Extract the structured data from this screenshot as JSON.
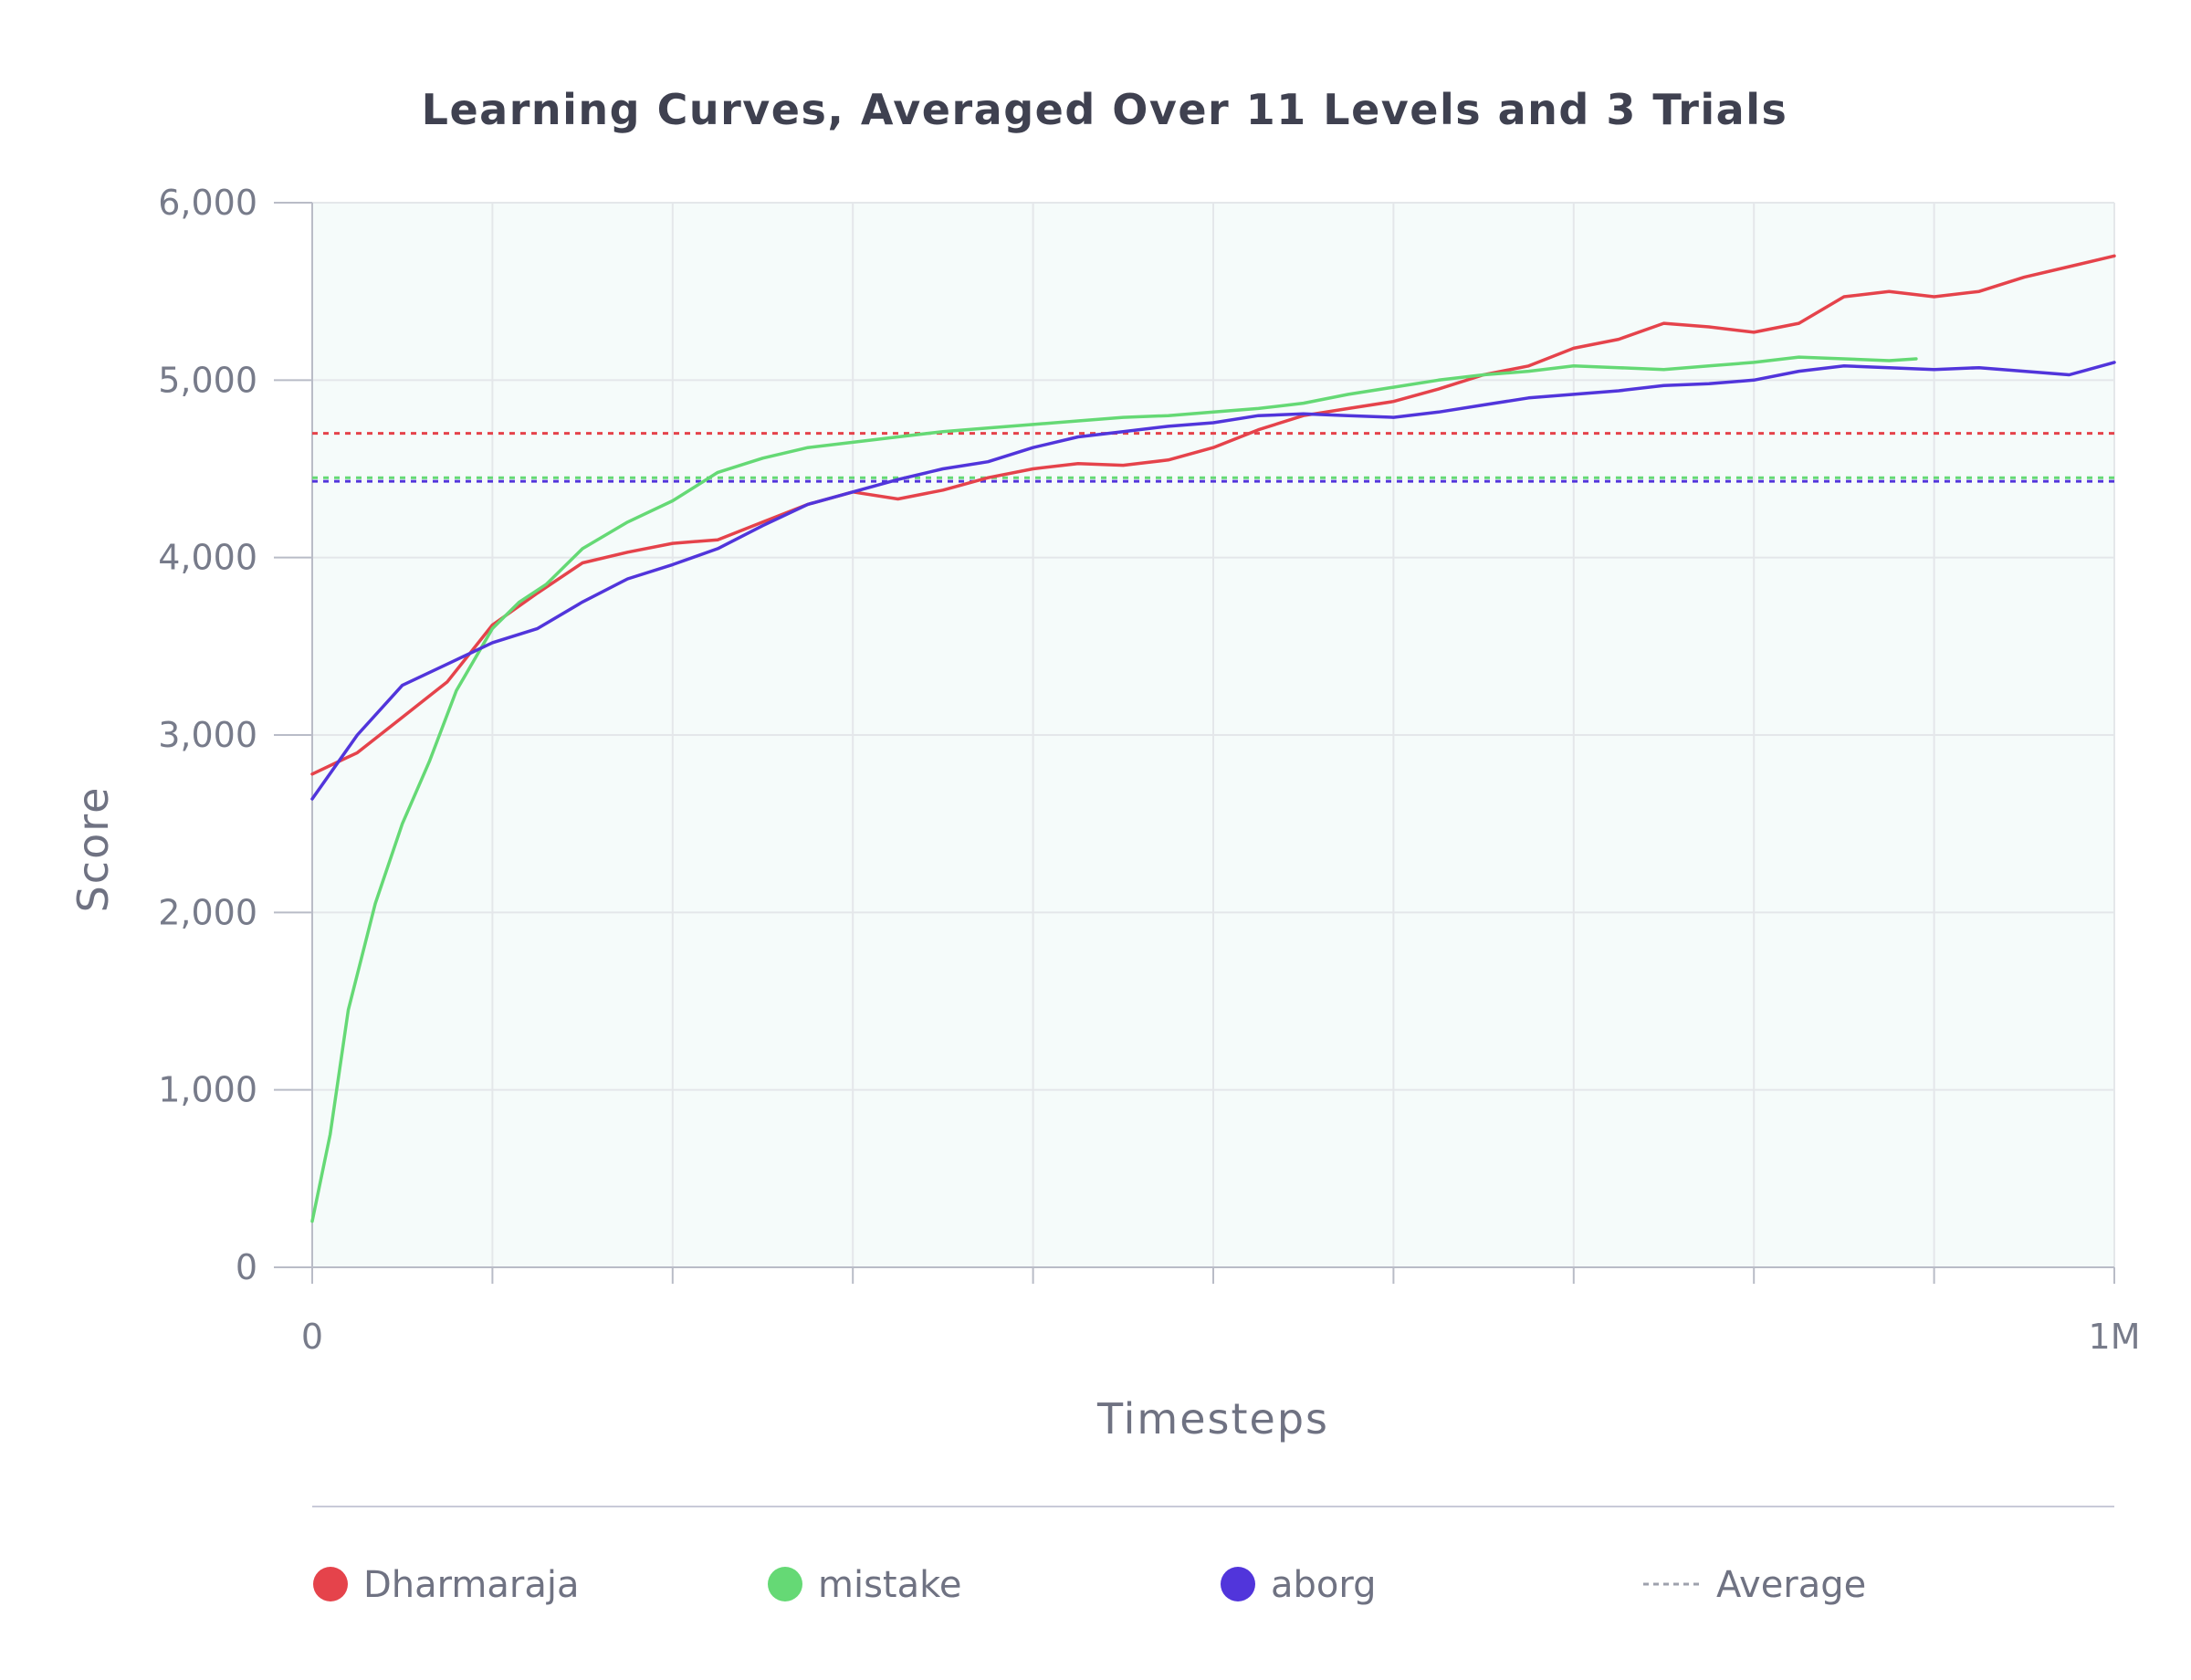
{
  "chart_data": {
    "type": "line",
    "title": "Learning Curves, Averaged Over 11 Levels and 3 Trials",
    "xlabel": "Timesteps",
    "ylabel": "Score",
    "xlim": [
      0,
      1000000
    ],
    "ylim": [
      0,
      6000
    ],
    "grid": true,
    "x_ticks": [
      {
        "value": 0,
        "label": "0"
      },
      {
        "value": 1000000,
        "label": "1M"
      }
    ],
    "y_ticks": [
      {
        "value": 0,
        "label": "0"
      },
      {
        "value": 1000,
        "label": "1,000"
      },
      {
        "value": 2000,
        "label": "2,000"
      },
      {
        "value": 3000,
        "label": "3,000"
      },
      {
        "value": 4000,
        "label": "4,000"
      },
      {
        "value": 5000,
        "label": "5,000"
      },
      {
        "value": 6000,
        "label": "6,000"
      }
    ],
    "legend_position": "bottom",
    "series": [
      {
        "name": "Dharmaraja",
        "color": "#e5434b",
        "average": 4700,
        "x": [
          0,
          25000,
          50000,
          75000,
          100000,
          125000,
          150000,
          175000,
          200000,
          225000,
          250000,
          275000,
          300000,
          325000,
          350000,
          375000,
          400000,
          425000,
          450000,
          475000,
          500000,
          525000,
          550000,
          575000,
          600000,
          625000,
          650000,
          675000,
          700000,
          725000,
          750000,
          775000,
          800000,
          825000,
          850000,
          875000,
          900000,
          925000,
          950000,
          975000,
          1000000
        ],
        "values": [
          2780,
          2900,
          3100,
          3300,
          3620,
          3800,
          3970,
          4030,
          4080,
          4100,
          4200,
          4300,
          4370,
          4330,
          4380,
          4450,
          4500,
          4530,
          4520,
          4550,
          4620,
          4720,
          4800,
          4840,
          4880,
          4950,
          5030,
          5080,
          5180,
          5230,
          5320,
          5300,
          5270,
          5320,
          5470,
          5500,
          5470,
          5500,
          5580,
          5640,
          5700
        ]
      },
      {
        "name": "mistake",
        "color": "#65d975",
        "average": 4450,
        "x": [
          0,
          10000,
          20000,
          35000,
          50000,
          65000,
          80000,
          100000,
          115000,
          130000,
          150000,
          175000,
          200000,
          225000,
          250000,
          275000,
          300000,
          325000,
          350000,
          375000,
          400000,
          425000,
          450000,
          475000,
          500000,
          525000,
          550000,
          575000,
          600000,
          625000,
          650000,
          675000,
          700000,
          725000,
          750000,
          775000,
          800000,
          825000,
          850000,
          875000,
          890000
        ],
        "values": [
          260,
          750,
          1450,
          2050,
          2500,
          2850,
          3250,
          3600,
          3750,
          3850,
          4050,
          4200,
          4320,
          4480,
          4560,
          4620,
          4650,
          4680,
          4710,
          4730,
          4750,
          4770,
          4790,
          4800,
          4820,
          4840,
          4870,
          4920,
          4960,
          5000,
          5030,
          5050,
          5080,
          5070,
          5060,
          5080,
          5100,
          5130,
          5120,
          5110,
          5120
        ]
      },
      {
        "name": "aborg",
        "color": "#5135db",
        "average": 4430,
        "x": [
          0,
          25000,
          50000,
          75000,
          100000,
          125000,
          150000,
          175000,
          200000,
          225000,
          250000,
          275000,
          300000,
          325000,
          350000,
          375000,
          400000,
          425000,
          450000,
          475000,
          500000,
          525000,
          550000,
          575000,
          600000,
          625000,
          650000,
          675000,
          700000,
          725000,
          750000,
          775000,
          800000,
          825000,
          850000,
          875000,
          900000,
          925000,
          950000,
          975000,
          1000000
        ],
        "values": [
          2640,
          3000,
          3280,
          3400,
          3520,
          3600,
          3750,
          3880,
          3960,
          4050,
          4180,
          4300,
          4370,
          4440,
          4500,
          4540,
          4620,
          4680,
          4710,
          4740,
          4760,
          4800,
          4810,
          4800,
          4790,
          4820,
          4860,
          4900,
          4920,
          4940,
          4970,
          4980,
          5000,
          5050,
          5080,
          5070,
          5060,
          5070,
          5050,
          5030,
          5100
        ]
      }
    ],
    "average_legend_label": "Average",
    "average_legend_color": "#9ea1ad",
    "colors": {
      "plot_background": "#f5fbfa",
      "grid": "#e4e7ea",
      "axis": "#b9bcc7",
      "title": "#3f4150",
      "label": "#777b8a"
    }
  }
}
